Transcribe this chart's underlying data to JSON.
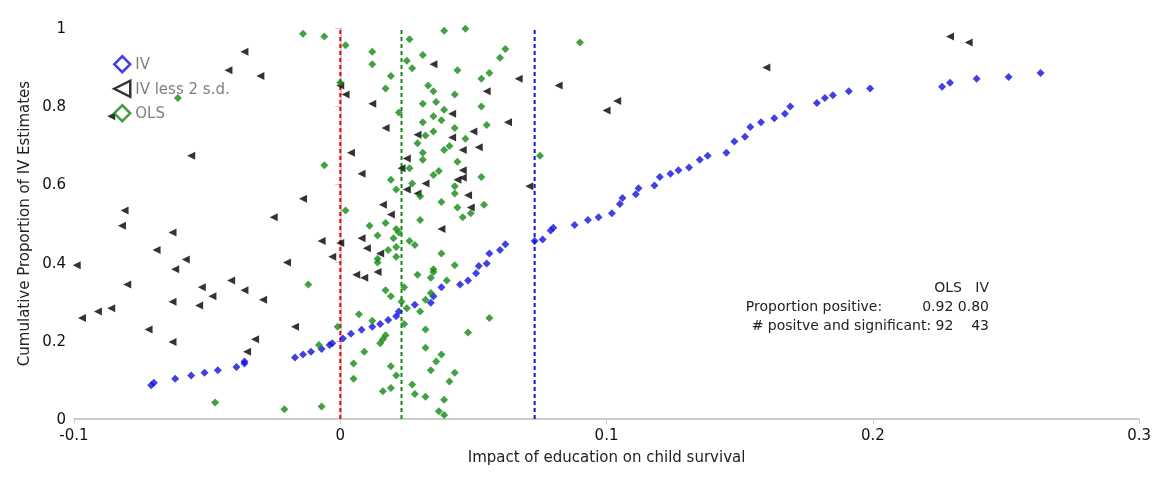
{
  "chart_data": {
    "type": "scatter",
    "xlabel": "Impact of education on child survival",
    "ylabel": "Cumulative Proportion of IV Estimates",
    "xlim": [
      -0.1,
      0.3
    ],
    "xticks": [
      -0.1,
      0,
      0.1,
      0.2,
      0.3
    ],
    "ylim": [
      0,
      1
    ],
    "yticks": [
      0,
      0.2,
      0.4,
      0.6,
      0.8,
      1
    ],
    "grid": false,
    "legend": "top left",
    "series": [
      {
        "name": "IV",
        "color": "#1010e0",
        "marker": "diamond",
        "x": [
          -0.071,
          -0.07,
          -0.062,
          -0.056,
          -0.051,
          -0.046,
          -0.039,
          -0.036,
          -0.036,
          -0.017,
          -0.014,
          -0.011,
          -0.007,
          -0.004,
          -0.003,
          0.001,
          0.004,
          0.008,
          0.012,
          0.015,
          0.018,
          0.021,
          0.022,
          0.028,
          0.034,
          0.035,
          0.038,
          0.045,
          0.048,
          0.051,
          0.052,
          0.055,
          0.056,
          0.06,
          0.062,
          0.073,
          0.076,
          0.079,
          0.08,
          0.088,
          0.093,
          0.097,
          0.102,
          0.105,
          0.106,
          0.111,
          0.112,
          0.118,
          0.12,
          0.124,
          0.127,
          0.131,
          0.135,
          0.138,
          0.145,
          0.148,
          0.152,
          0.154,
          0.158,
          0.163,
          0.167,
          0.169,
          0.179,
          0.182,
          0.185,
          0.191,
          0.199,
          0.226,
          0.229,
          0.239,
          0.251,
          0.263
        ],
        "values": [
          0.086,
          0.093,
          0.103,
          0.111,
          0.118,
          0.125,
          0.133,
          0.142,
          0.147,
          0.157,
          0.165,
          0.172,
          0.179,
          0.189,
          0.194,
          0.206,
          0.218,
          0.228,
          0.236,
          0.243,
          0.253,
          0.263,
          0.275,
          0.292,
          0.297,
          0.314,
          0.337,
          0.344,
          0.354,
          0.373,
          0.391,
          0.398,
          0.423,
          0.432,
          0.447,
          0.455,
          0.459,
          0.482,
          0.489,
          0.496,
          0.509,
          0.516,
          0.526,
          0.55,
          0.565,
          0.575,
          0.59,
          0.597,
          0.619,
          0.627,
          0.636,
          0.643,
          0.663,
          0.673,
          0.681,
          0.71,
          0.722,
          0.747,
          0.759,
          0.769,
          0.781,
          0.799,
          0.808,
          0.821,
          0.828,
          0.838,
          0.845,
          0.85,
          0.86,
          0.87,
          0.875,
          0.885
        ]
      },
      {
        "name": "IV less 2 s.d.",
        "color": "#000000",
        "marker": "triangle",
        "x": [
          -0.036,
          -0.042,
          -0.03,
          -0.086,
          -0.056,
          -0.014,
          -0.081,
          -0.082,
          -0.025,
          -0.063,
          -0.007,
          0.0,
          -0.069,
          -0.058,
          -0.099,
          -0.003,
          -0.062,
          -0.02,
          -0.08,
          -0.052,
          -0.041,
          -0.036,
          -0.048,
          -0.063,
          -0.053,
          -0.029,
          -0.097,
          -0.091,
          -0.086,
          -0.072,
          -0.017,
          -0.032,
          -0.063,
          -0.035,
          0.0,
          0.002,
          0.035,
          0.067,
          0.055,
          0.012,
          0.042,
          0.063,
          0.017,
          0.05,
          0.029,
          0.042,
          0.052,
          0.046,
          0.004,
          0.025,
          0.023,
          0.008,
          0.046,
          0.046,
          0.044,
          0.032,
          0.071,
          0.025,
          0.029,
          0.048,
          0.016,
          0.049,
          0.019,
          0.038,
          0.008,
          0.01,
          0.015,
          0.006,
          0.009,
          0.014,
          0.082,
          0.104,
          0.1,
          0.16,
          0.229,
          0.236
        ],
        "values": [
          0.939,
          0.892,
          0.877,
          0.774,
          0.673,
          0.563,
          0.533,
          0.494,
          0.516,
          0.477,
          0.455,
          0.45,
          0.432,
          0.408,
          0.393,
          0.415,
          0.383,
          0.4,
          0.344,
          0.337,
          0.354,
          0.329,
          0.314,
          0.3,
          0.29,
          0.305,
          0.258,
          0.275,
          0.283,
          0.229,
          0.236,
          0.204,
          0.197,
          0.172,
          0.853,
          0.83,
          0.907,
          0.87,
          0.838,
          0.806,
          0.781,
          0.759,
          0.744,
          0.735,
          0.727,
          0.72,
          0.695,
          0.688,
          0.681,
          0.666,
          0.641,
          0.627,
          0.636,
          0.617,
          0.612,
          0.602,
          0.595,
          0.587,
          0.577,
          0.572,
          0.548,
          0.541,
          0.523,
          0.486,
          0.462,
          0.437,
          0.423,
          0.369,
          0.361,
          0.376,
          0.853,
          0.813,
          0.789,
          0.899,
          0.978,
          0.963
        ]
      },
      {
        "name": "OLS",
        "color": "#138a13",
        "marker": "diamond",
        "x": [
          -0.014,
          -0.006,
          -0.061,
          -0.006,
          -0.012,
          -0.047,
          -0.021,
          -0.007,
          -0.008,
          0.0,
          -0.001,
          0.002,
          0.039,
          0.047,
          0.026,
          0.012,
          0.012,
          0.031,
          0.062,
          0.06,
          0.025,
          0.027,
          0.044,
          0.056,
          0.053,
          0.019,
          0.017,
          0.033,
          0.035,
          0.043,
          0.036,
          0.031,
          0.053,
          0.039,
          0.022,
          0.035,
          0.038,
          0.031,
          0.055,
          0.043,
          0.035,
          0.032,
          0.029,
          0.047,
          0.041,
          0.039,
          0.031,
          0.031,
          0.044,
          0.026,
          0.037,
          0.035,
          0.053,
          0.019,
          0.027,
          0.043,
          0.021,
          0.043,
          0.03,
          0.038,
          0.044,
          0.054,
          0.002,
          0.046,
          0.049,
          0.03,
          0.017,
          0.011,
          0.014,
          0.021,
          0.022,
          0.02,
          0.026,
          0.028,
          0.018,
          0.021,
          0.021,
          0.014,
          0.014,
          0.038,
          0.043,
          0.035,
          0.035,
          0.029,
          0.034,
          0.017,
          0.019,
          0.04,
          0.024,
          0.023,
          0.025,
          0.03,
          0.032,
          0.034,
          0.056,
          0.007,
          0.012,
          0.024,
          0.032,
          0.048,
          0.017,
          0.016,
          0.015,
          0.009,
          0.032,
          0.038,
          0.036,
          0.005,
          0.019,
          0.034,
          0.043,
          0.005,
          0.021,
          0.041,
          0.027,
          0.016,
          0.019,
          0.028,
          0.032,
          0.039,
          0.037,
          0.039,
          0.075,
          0.09
        ],
        "values": [
          0.985,
          0.978,
          0.821,
          0.649,
          0.344,
          0.042,
          0.025,
          0.032,
          0.189,
          0.86,
          0.236,
          0.956,
          0.993,
          0.998,
          0.971,
          0.939,
          0.907,
          0.931,
          0.946,
          0.924,
          0.916,
          0.897,
          0.892,
          0.885,
          0.87,
          0.877,
          0.845,
          0.853,
          0.838,
          0.83,
          0.811,
          0.806,
          0.799,
          0.791,
          0.784,
          0.774,
          0.764,
          0.759,
          0.752,
          0.744,
          0.735,
          0.725,
          0.705,
          0.717,
          0.698,
          0.688,
          0.681,
          0.663,
          0.658,
          0.641,
          0.634,
          0.624,
          0.619,
          0.612,
          0.602,
          0.595,
          0.587,
          0.577,
          0.57,
          0.555,
          0.541,
          0.548,
          0.533,
          0.516,
          0.526,
          0.509,
          0.501,
          0.494,
          0.469,
          0.486,
          0.477,
          0.462,
          0.455,
          0.445,
          0.432,
          0.44,
          0.415,
          0.41,
          0.4,
          0.423,
          0.393,
          0.383,
          0.376,
          0.369,
          0.361,
          0.329,
          0.314,
          0.354,
          0.337,
          0.3,
          0.283,
          0.275,
          0.305,
          0.322,
          0.258,
          0.268,
          0.251,
          0.243,
          0.229,
          0.221,
          0.214,
          0.204,
          0.194,
          0.172,
          0.182,
          0.165,
          0.147,
          0.142,
          0.135,
          0.125,
          0.118,
          0.103,
          0.111,
          0.096,
          0.088,
          0.071,
          0.079,
          0.064,
          0.057,
          0.049,
          0.02,
          0.01,
          0.673,
          0.963
        ]
      }
    ],
    "ref_lines": [
      {
        "axis": "x",
        "value": 0,
        "color": "#ff0000",
        "line_style": "dashed"
      },
      {
        "axis": "x",
        "value": 0.023,
        "color": "#138a13",
        "line_style": "dashed"
      },
      {
        "axis": "x",
        "value": 0.073,
        "color": "#1010e0",
        "line_style": "dashed"
      }
    ],
    "annotations": [
      "OLS   IV",
      "Proportion positive:         0.92 0.80",
      "# positve and significant: 92    43"
    ]
  }
}
